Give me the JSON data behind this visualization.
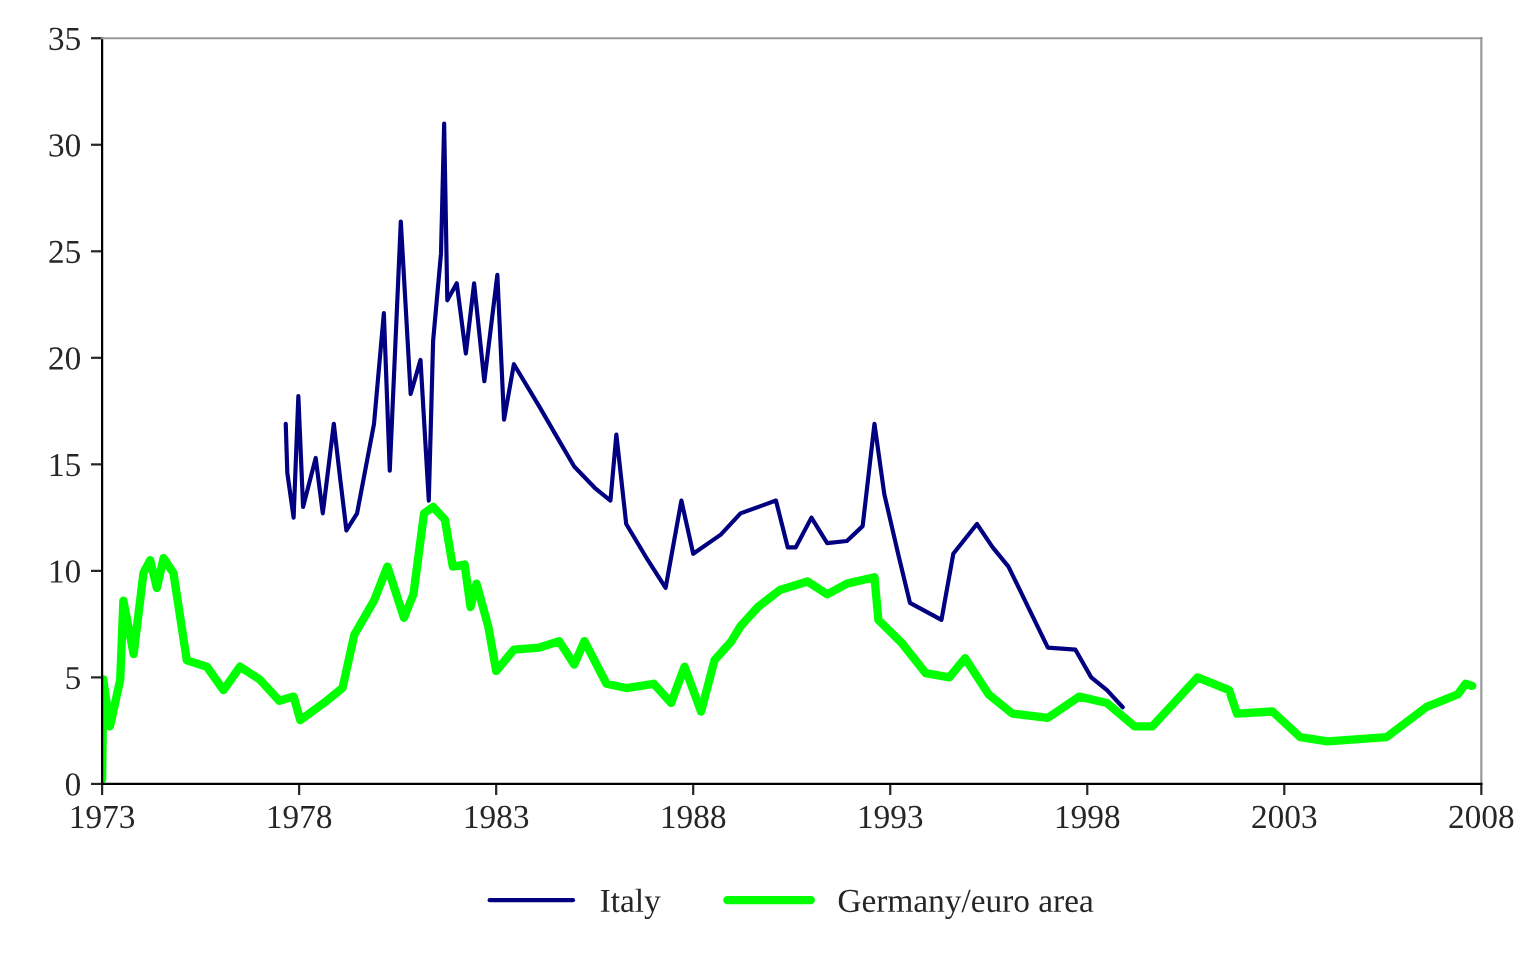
{
  "chart_data": {
    "type": "line",
    "xlim": [
      1973,
      2008
    ],
    "xticks": [
      1973,
      1978,
      1983,
      1988,
      1993,
      1998,
      2003,
      2008
    ],
    "ylim": [
      0,
      35
    ],
    "yticks": [
      0,
      5,
      10,
      15,
      20,
      25,
      30,
      35
    ],
    "grid": false,
    "legend": "bottom",
    "marker": "none",
    "line_style": "solid",
    "series": [
      {
        "name": "Italy",
        "color": "#000080",
        "x": [
          1977.66,
          1977.7,
          1977.86,
          1977.98,
          1978.1,
          1978.42,
          1978.6,
          1978.88,
          1979.05,
          1979.2,
          1979.47,
          1979.9,
          1980.15,
          1980.3,
          1980.58,
          1980.83,
          1981.08,
          1981.29,
          1981.4,
          1981.6,
          1981.68,
          1981.76,
          1982.0,
          1982.23,
          1982.44,
          1982.7,
          1983.03,
          1983.2,
          1983.45,
          1984.1,
          1984.6,
          1984.98,
          1985.5,
          1985.9,
          1986.05,
          1986.3,
          1986.85,
          1987.3,
          1987.7,
          1988.0,
          1988.7,
          1989.2,
          1990.1,
          1990.4,
          1990.6,
          1991.0,
          1991.4,
          1991.9,
          1992.3,
          1992.6,
          1992.85,
          1993.2,
          1993.5,
          1994.3,
          1994.6,
          1995.2,
          1995.6,
          1996.0,
          1996.5,
          1997.0,
          1997.7,
          1998.1,
          1998.5,
          1998.9
        ],
        "values": [
          16.9,
          14.6,
          12.5,
          18.2,
          13.0,
          15.3,
          12.7,
          16.9,
          14.2,
          11.9,
          12.7,
          16.9,
          22.1,
          14.7,
          26.4,
          18.3,
          19.9,
          13.3,
          20.8,
          24.9,
          31.0,
          22.7,
          23.5,
          20.2,
          23.5,
          18.9,
          23.9,
          17.1,
          19.7,
          17.7,
          16.1,
          14.9,
          13.9,
          13.3,
          16.4,
          12.2,
          10.5,
          9.2,
          13.3,
          10.8,
          11.7,
          12.7,
          13.3,
          11.1,
          11.1,
          12.5,
          11.3,
          11.4,
          12.1,
          16.9,
          13.6,
          10.8,
          8.5,
          7.7,
          10.8,
          12.2,
          11.1,
          10.2,
          8.3,
          6.4,
          6.3,
          5.0,
          4.4,
          3.6
        ]
      },
      {
        "name": "Germany/euro area",
        "color": "#00ff00",
        "x": [
          1973.0,
          1973.03,
          1973.2,
          1973.46,
          1973.54,
          1973.8,
          1974.05,
          1974.22,
          1974.39,
          1974.56,
          1974.81,
          1975.15,
          1975.66,
          1976.08,
          1976.5,
          1977.0,
          1977.5,
          1977.86,
          1978.03,
          1978.7,
          1979.1,
          1979.4,
          1979.9,
          1980.24,
          1980.66,
          1980.9,
          1981.17,
          1981.4,
          1981.7,
          1981.9,
          1982.2,
          1982.35,
          1982.5,
          1982.8,
          1983.0,
          1983.45,
          1984.1,
          1984.6,
          1984.98,
          1985.24,
          1985.8,
          1986.3,
          1987.0,
          1987.44,
          1987.78,
          1988.2,
          1988.54,
          1988.97,
          1989.2,
          1989.64,
          1990.2,
          1990.9,
          1991.4,
          1991.9,
          1992.6,
          1992.7,
          1993.3,
          1993.9,
          1994.5,
          1994.9,
          1995.5,
          1996.1,
          1997.0,
          1997.8,
          1998.5,
          1999.2,
          1999.65,
          2000.1,
          2000.8,
          2001.6,
          2001.8,
          2002.7,
          2003.4,
          2004.1,
          2005.6,
          2006.6,
          2007.4,
          2007.6,
          2007.77
        ],
        "values": [
          0.2,
          4.9,
          2.7,
          4.9,
          8.6,
          6.1,
          9.9,
          10.5,
          9.2,
          10.6,
          9.9,
          5.8,
          5.5,
          4.4,
          5.5,
          4.9,
          3.9,
          4.1,
          3.0,
          3.9,
          4.5,
          7.0,
          8.6,
          10.2,
          7.8,
          8.9,
          12.7,
          13.0,
          12.4,
          10.2,
          10.3,
          8.3,
          9.4,
          7.4,
          5.3,
          6.3,
          6.4,
          6.7,
          5.6,
          6.7,
          4.7,
          4.5,
          4.7,
          3.8,
          5.5,
          3.4,
          5.8,
          6.7,
          7.4,
          8.3,
          9.1,
          9.5,
          8.9,
          9.4,
          9.7,
          7.7,
          6.6,
          5.2,
          5.0,
          5.9,
          4.2,
          3.3,
          3.1,
          4.1,
          3.8,
          2.7,
          2.7,
          3.6,
          5.0,
          4.4,
          3.3,
          3.4,
          2.2,
          2.0,
          2.2,
          3.6,
          4.2,
          4.7,
          4.6
        ]
      }
    ]
  }
}
